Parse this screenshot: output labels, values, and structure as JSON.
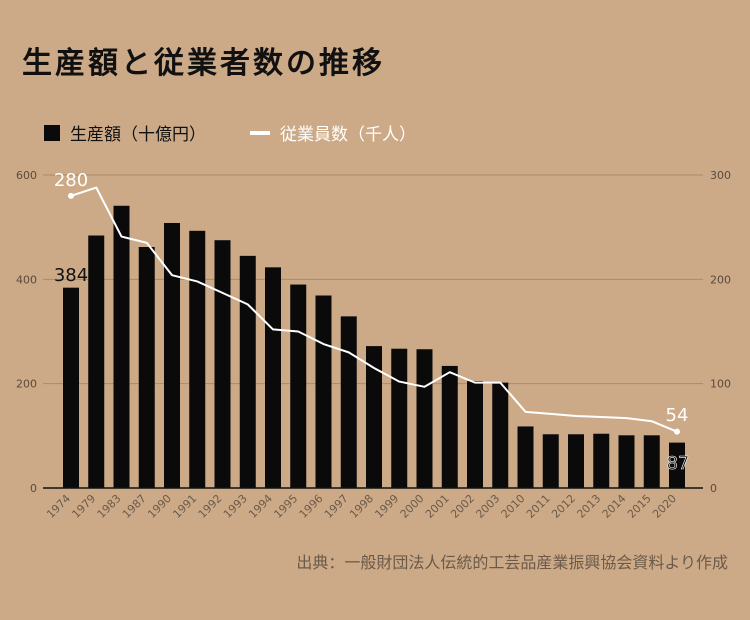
{
  "title": "生産額と従業者数の推移",
  "legend": {
    "bar_label": "生産額（十億円）",
    "line_label": "従業員数（千人）"
  },
  "source": "出典：一般財団法人伝統的工芸品産業振興協会資料より作成",
  "colors": {
    "background": "#cdaa87",
    "bar": "#0a0a0a",
    "line": "#ffffff",
    "grid": "#a98a6c"
  },
  "chart_data": {
    "type": "bar",
    "categories": [
      "1974",
      "1979",
      "1983",
      "1987",
      "1990",
      "1991",
      "1992",
      "1993",
      "1994",
      "1995",
      "1996",
      "1997",
      "1998",
      "1999",
      "2000",
      "2001",
      "2002",
      "2003",
      "2010",
      "2011",
      "2012",
      "2013",
      "2014",
      "2015",
      "2020"
    ],
    "series": [
      {
        "name": "生産額（十億円）",
        "type": "bar",
        "axis": "left",
        "values": [
          384,
          484,
          541,
          462,
          508,
          493,
          475,
          445,
          423,
          390,
          369,
          329,
          272,
          267,
          266,
          234,
          205,
          202,
          118,
          103,
          103,
          104,
          101,
          101,
          87
        ]
      },
      {
        "name": "従業員数（千人）",
        "type": "line",
        "axis": "right",
        "values": [
          280,
          288,
          241,
          235,
          204,
          198,
          187,
          176,
          152,
          150,
          138,
          130,
          115,
          102,
          97,
          111,
          101,
          101,
          73,
          71,
          69,
          68,
          67,
          64,
          54
        ]
      }
    ],
    "y_left": {
      "min": 0,
      "max": 600,
      "ticks": [
        0,
        200,
        400,
        600
      ]
    },
    "y_right": {
      "min": 0,
      "max": 300,
      "ticks": [
        0,
        100,
        200,
        300
      ]
    },
    "annotations": {
      "bar_first": "384",
      "bar_last": "87",
      "line_first": "280",
      "line_last": "54"
    },
    "grid": true,
    "legend_position": "top-left"
  }
}
